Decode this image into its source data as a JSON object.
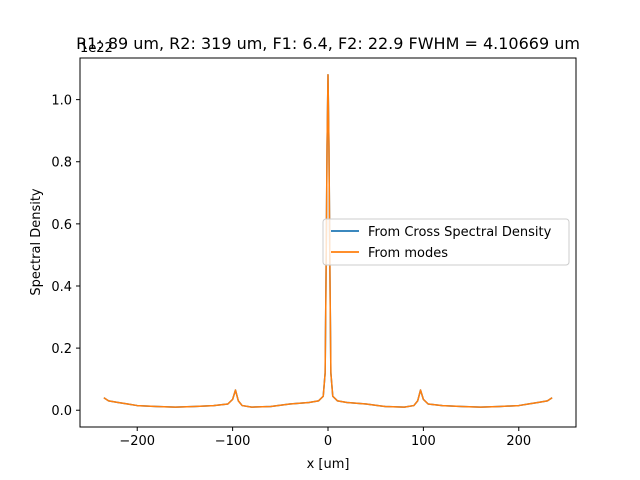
{
  "chart_data": {
    "type": "line",
    "title": "R1: 89 um, R2: 319 um, F1:  6.4, F2: 22.9  FWHM = 4.10669 um",
    "xlabel": "x [um]",
    "ylabel": "Spectral Density",
    "y_offset_text": "1e22",
    "xlim": [
      -260,
      260
    ],
    "ylim": [
      -0.054,
      1.134
    ],
    "y_scale_note": "values in units of 1e22",
    "xticks": [
      -200,
      -100,
      0,
      100,
      200
    ],
    "xtick_labels": [
      "−200",
      "−100",
      "0",
      "100",
      "200"
    ],
    "yticks": [
      0.0,
      0.2,
      0.4,
      0.6,
      0.8,
      1.0
    ],
    "ytick_labels": [
      "0.0",
      "0.2",
      "0.4",
      "0.6",
      "0.8",
      "1.0"
    ],
    "grid": false,
    "legend_position": "center-right",
    "series": [
      {
        "name": "From Cross Spectral Density",
        "color": "#1f77b4"
      },
      {
        "name": "From modes",
        "color": "#ff7f0e"
      }
    ],
    "x": [
      -235,
      -230,
      -220,
      -210,
      -200,
      -180,
      -160,
      -140,
      -120,
      -105,
      -100,
      -97,
      -94,
      -90,
      -80,
      -60,
      -40,
      -20,
      -10,
      -5,
      -3,
      -2,
      -1,
      0,
      1,
      2,
      3,
      5,
      10,
      20,
      40,
      60,
      80,
      90,
      94,
      97,
      100,
      105,
      120,
      140,
      160,
      180,
      200,
      210,
      220,
      230,
      235
    ],
    "values": [
      0.04,
      0.03,
      0.025,
      0.02,
      0.015,
      0.012,
      0.01,
      0.012,
      0.015,
      0.02,
      0.035,
      0.065,
      0.03,
      0.015,
      0.01,
      0.012,
      0.02,
      0.025,
      0.03,
      0.045,
      0.12,
      0.45,
      0.85,
      1.08,
      0.85,
      0.45,
      0.12,
      0.045,
      0.03,
      0.025,
      0.02,
      0.012,
      0.01,
      0.015,
      0.03,
      0.065,
      0.035,
      0.02,
      0.015,
      0.012,
      0.01,
      0.012,
      0.015,
      0.02,
      0.025,
      0.03,
      0.04
    ]
  }
}
